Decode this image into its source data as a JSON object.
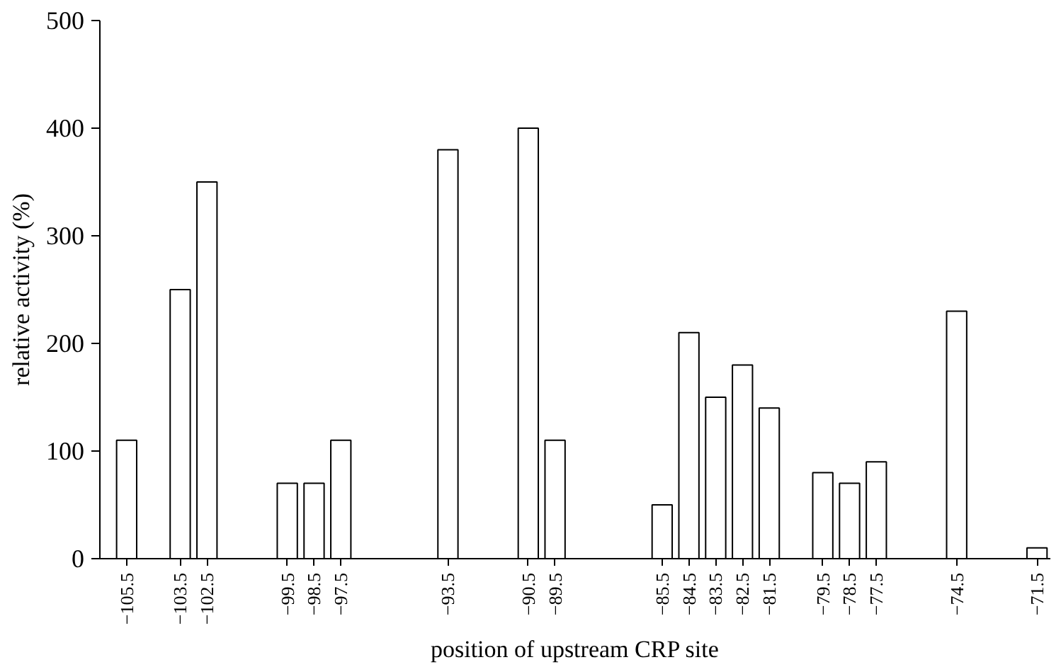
{
  "chart_data": {
    "type": "bar",
    "xlabel": "position of upstream CRP site",
    "ylabel": "relative activity (%)",
    "x": [
      -105.5,
      -103.5,
      -102.5,
      -99.5,
      -98.5,
      -97.5,
      -93.5,
      -90.5,
      -89.5,
      -85.5,
      -84.5,
      -83.5,
      -82.5,
      -81.5,
      -79.5,
      -78.5,
      -77.5,
      -74.5,
      -71.5
    ],
    "values": [
      110,
      250,
      350,
      70,
      70,
      110,
      380,
      400,
      110,
      50,
      210,
      150,
      180,
      140,
      80,
      70,
      90,
      230,
      10
    ],
    "color": "#ffffff",
    "xlim": [
      -106.5,
      -71
    ],
    "xticks": [
      -105.5,
      -103.5,
      -102.5,
      -99.5,
      -98.5,
      -97.5,
      -93.5,
      -90.5,
      -89.5,
      -85.5,
      -84.5,
      -83.5,
      -82.5,
      -81.5,
      -79.5,
      -78.5,
      -77.5,
      -74.5,
      -71.5
    ],
    "ylim": [
      0,
      500
    ],
    "yticks": [
      0,
      100,
      200,
      300,
      400,
      500
    ],
    "grid": false
  }
}
